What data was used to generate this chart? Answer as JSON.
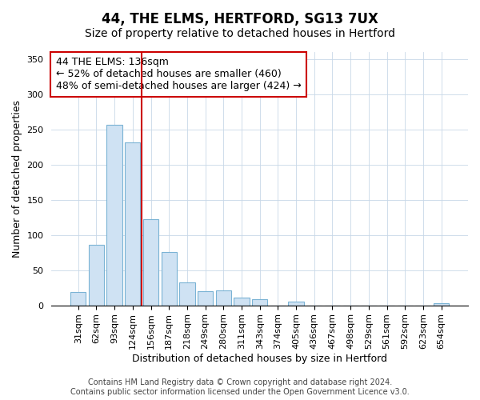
{
  "title": "44, THE ELMS, HERTFORD, SG13 7UX",
  "subtitle": "Size of property relative to detached houses in Hertford",
  "xlabel": "Distribution of detached houses by size in Hertford",
  "ylabel": "Number of detached properties",
  "categories": [
    "31sqm",
    "62sqm",
    "93sqm",
    "124sqm",
    "156sqm",
    "187sqm",
    "218sqm",
    "249sqm",
    "280sqm",
    "311sqm",
    "343sqm",
    "374sqm",
    "405sqm",
    "436sqm",
    "467sqm",
    "498sqm",
    "529sqm",
    "561sqm",
    "592sqm",
    "623sqm",
    "654sqm"
  ],
  "values": [
    19,
    86,
    257,
    231,
    122,
    76,
    33,
    20,
    21,
    11,
    9,
    0,
    5,
    0,
    0,
    0,
    0,
    0,
    0,
    0,
    3
  ],
  "bar_color": "#cfe2f3",
  "bar_edge_color": "#7ab3d4",
  "vline_x_idx": 3.5,
  "vline_color": "#cc0000",
  "annotation_title": "44 THE ELMS: 136sqm",
  "annotation_line1": "← 52% of detached houses are smaller (460)",
  "annotation_line2": "48% of semi-detached houses are larger (424) →",
  "ylim": [
    0,
    360
  ],
  "yticks": [
    0,
    50,
    100,
    150,
    200,
    250,
    300,
    350
  ],
  "footer1": "Contains HM Land Registry data © Crown copyright and database right 2024.",
  "footer2": "Contains public sector information licensed under the Open Government Licence v3.0.",
  "title_fontsize": 12,
  "subtitle_fontsize": 10,
  "label_fontsize": 9,
  "tick_fontsize": 8,
  "annotation_fontsize": 9,
  "footer_fontsize": 7
}
